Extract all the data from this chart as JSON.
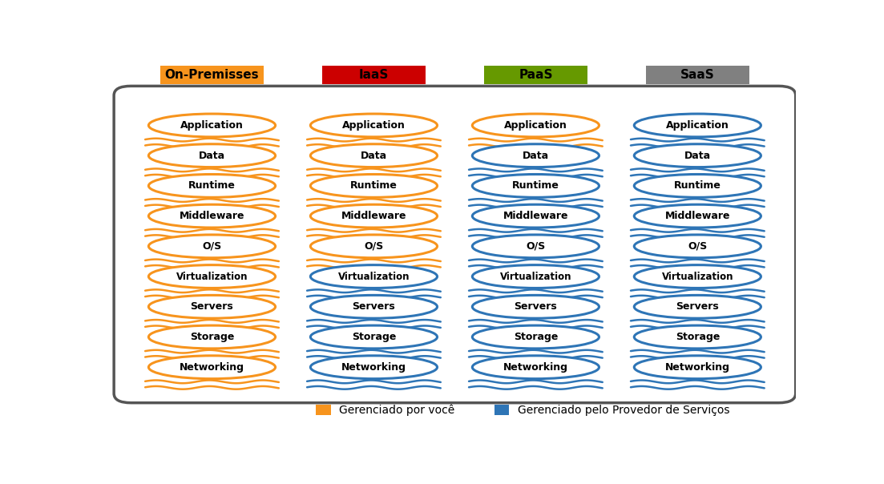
{
  "columns": [
    "On-Premisses",
    "IaaS",
    "PaaS",
    "SaaS"
  ],
  "header_colors": [
    "#F7941D",
    "#CC0000",
    "#669900",
    "#808080"
  ],
  "rows": [
    "Application",
    "Data",
    "Runtime",
    "Middleware",
    "O/S",
    "Virtualization",
    "Servers",
    "Storage",
    "Networking"
  ],
  "orange_color": "#F7941D",
  "blue_color": "#2E75B6",
  "legend_orange": "Gerenciado por você",
  "legend_blue": "Gerenciado pelo Provedor de Serviços",
  "managed_you": {
    "On-Premisses": [
      0,
      1,
      2,
      3,
      4,
      5,
      6,
      7,
      8
    ],
    "IaaS": [
      0,
      1,
      2,
      3,
      4
    ],
    "PaaS": [
      0
    ],
    "SaaS": []
  },
  "managed_provider": {
    "On-Premisses": [],
    "IaaS": [
      5,
      6,
      7,
      8
    ],
    "PaaS": [
      1,
      2,
      3,
      4,
      5,
      6,
      7,
      8
    ],
    "SaaS": [
      0,
      1,
      2,
      3,
      4,
      5,
      6,
      7,
      8
    ]
  },
  "bg_color": "#FFFFFF",
  "outer_box_color": "#555555",
  "fig_width": 11.03,
  "fig_height": 6.04
}
